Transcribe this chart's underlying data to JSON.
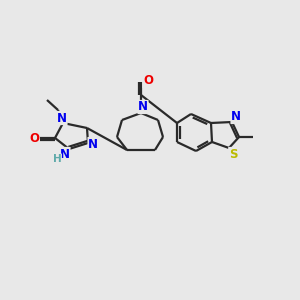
{
  "bg_color": "#e8e8e8",
  "bond_color": "#2a2a2a",
  "atom_colors": {
    "N": "#0000ee",
    "O": "#ee0000",
    "S": "#bbbb00",
    "H": "#5faaaa",
    "C": "#2a2a2a"
  },
  "figsize": [
    3.0,
    3.0
  ],
  "dpi": 100,
  "lw": 1.6,
  "fs": 8.5
}
